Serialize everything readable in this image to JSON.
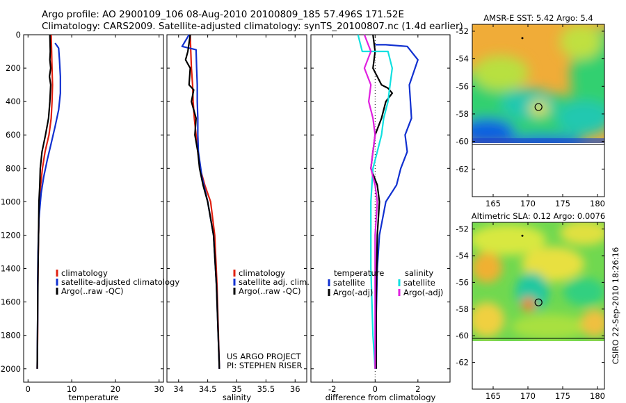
{
  "header": {
    "line1": "Argo profile: AO 2900109_106 08-Aug-2010 20100809_185 57.496S 171.52E",
    "line2": "Climatology: CARS2009. Satellite-adjusted climatology: synTS_20100807.nc (1.4d earlier)"
  },
  "colors": {
    "red": "#e02010",
    "blue": "#1030d0",
    "black": "#000000",
    "cyan": "#10e0e0",
    "magenta": "#e020e0"
  },
  "credit": "CSIRO 22-Sep-2010 18:26:16",
  "chart_data": [
    {
      "type": "line",
      "xlabel": "temperature",
      "xlim": [
        -1,
        31
      ],
      "ylim": [
        2080,
        0
      ],
      "xticks": [
        "0",
        "10",
        "20",
        "30"
      ],
      "yticks": [
        "0",
        "200",
        "400",
        "600",
        "800",
        "1000",
        "1200",
        "1400",
        "1600",
        "1800",
        "2000"
      ],
      "legend": [
        "climatology",
        "satellite-adjusted climatology",
        "Argo(..raw -QC)"
      ],
      "series": [
        {
          "name": "climatology",
          "color": "red",
          "x": [
            5.3,
            5.4,
            5.5,
            5.6,
            5.5,
            5.3,
            4.8,
            3.9,
            3.3,
            2.9,
            2.6,
            2.4,
            2.3,
            2.2,
            2.2,
            2.1
          ],
          "y": [
            0,
            100,
            200,
            300,
            400,
            500,
            600,
            700,
            800,
            900,
            1000,
            1200,
            1400,
            1600,
            1800,
            2000
          ]
        },
        {
          "name": "satellite-adjusted climatology",
          "color": "blue",
          "x": [
            6.2,
            7.0,
            7.2,
            7.4,
            7.4,
            7.0,
            6.2,
            5.3,
            4.4,
            3.6,
            3.0,
            2.5,
            2.3,
            2.2,
            2.2,
            2.1
          ],
          "y": [
            50,
            80,
            150,
            250,
            350,
            450,
            550,
            650,
            750,
            850,
            950,
            1100,
            1300,
            1500,
            1700,
            2000
          ]
        },
        {
          "name": "Argo(..raw -QC)",
          "color": "black",
          "x": [
            5.0,
            5.1,
            5.0,
            5.2,
            4.9,
            5.2,
            5.0,
            4.7,
            4.0,
            3.2,
            2.8,
            2.7,
            2.5,
            2.4,
            2.3,
            2.2,
            2.1
          ],
          "y": [
            0,
            100,
            150,
            200,
            250,
            300,
            400,
            500,
            600,
            700,
            800,
            900,
            1000,
            1200,
            1400,
            1700,
            2000
          ]
        }
      ]
    },
    {
      "type": "line",
      "xlabel": "salinity",
      "xlim": [
        33.8,
        36.2
      ],
      "ylim": [
        2080,
        0
      ],
      "xticks": [
        "34",
        "34.5",
        "35",
        "35.5",
        "36"
      ],
      "legend": [
        "climatology",
        "satellite adj. clim.",
        "Argo(..raw -QC)"
      ],
      "annotation": [
        "US ARGO PROJECT",
        "PI: STEPHEN RISER"
      ],
      "series": [
        {
          "name": "climatology",
          "color": "red",
          "x": [
            34.2,
            34.21,
            34.22,
            34.24,
            34.25,
            34.27,
            34.3,
            34.33,
            34.37,
            34.45,
            34.55,
            34.62,
            34.66,
            34.7
          ],
          "y": [
            0,
            100,
            200,
            300,
            400,
            500,
            600,
            700,
            800,
            900,
            1000,
            1200,
            1500,
            2000
          ]
        },
        {
          "name": "satellite adj. clim.",
          "color": "blue",
          "x": [
            34.18,
            34.06,
            34.3,
            34.31,
            34.32,
            34.32,
            34.33,
            34.33,
            34.34,
            34.4,
            34.5,
            34.6,
            34.65,
            34.7
          ],
          "y": [
            0,
            70,
            90,
            200,
            300,
            400,
            500,
            600,
            700,
            850,
            1000,
            1200,
            1500,
            2000
          ]
        },
        {
          "name": "Argo(..raw -QC)",
          "color": "black",
          "x": [
            34.2,
            34.16,
            34.12,
            34.2,
            34.18,
            34.26,
            34.22,
            34.3,
            34.28,
            34.33,
            34.36,
            34.42,
            34.5,
            34.6,
            34.65,
            34.7
          ],
          "y": [
            0,
            100,
            150,
            200,
            300,
            330,
            400,
            500,
            600,
            700,
            800,
            900,
            1000,
            1200,
            1500,
            2000
          ]
        }
      ]
    },
    {
      "type": "line",
      "xlabel": "difference from climatology",
      "xlim": [
        -3,
        3.5
      ],
      "ylim": [
        2080,
        0
      ],
      "xticks": [
        "-2",
        "0",
        "2"
      ],
      "legend_title": [
        "temperature",
        "salinity"
      ],
      "legend": [
        "satellite",
        "Argo(-adj)",
        "satellite",
        "Argo(-adj)"
      ],
      "series": [
        {
          "name": "satellite",
          "group": "temperature",
          "color": "blue",
          "x": [
            0,
            0.5,
            1.5,
            2.0,
            1.6,
            1.7,
            1.4,
            1.5,
            1.2,
            1.0,
            0.5,
            0.2,
            0.1,
            0.05,
            0.05
          ],
          "y": [
            60,
            60,
            70,
            150,
            300,
            500,
            600,
            700,
            800,
            900,
            1000,
            1200,
            1400,
            1700,
            2000
          ]
        },
        {
          "name": "Argo(-adj)",
          "group": "temperature",
          "color": "black",
          "x": [
            -0.1,
            0,
            -0.1,
            0.3,
            0.6,
            0.8,
            0.5,
            0.3,
            0,
            -0.1,
            -0.2,
            0.1,
            0.2,
            0.1,
            0.05,
            0.05
          ],
          "y": [
            0,
            100,
            200,
            300,
            320,
            350,
            400,
            500,
            600,
            700,
            800,
            900,
            1000,
            1200,
            1600,
            2000
          ]
        },
        {
          "name": "satellite",
          "group": "salinity",
          "color": "cyan",
          "x": [
            -0.8,
            -0.6,
            0.6,
            0.8,
            0.7,
            0.6,
            0.4,
            0.3,
            0.1,
            -0.1,
            -0.2,
            -0.2,
            -0.1,
            0
          ],
          "y": [
            0,
            100,
            100,
            200,
            300,
            400,
            500,
            600,
            700,
            800,
            1000,
            1400,
            1800,
            2000
          ]
        },
        {
          "name": "Argo(-adj)",
          "group": "salinity",
          "color": "magenta",
          "x": [
            -0.5,
            -0.2,
            -0.5,
            -0.2,
            -0.3,
            -0.1,
            0,
            -0.1,
            -0.2,
            0,
            0.1,
            0,
            0
          ],
          "y": [
            0,
            100,
            200,
            300,
            400,
            500,
            600,
            700,
            800,
            900,
            1000,
            1200,
            2000
          ]
        }
      ]
    },
    {
      "type": "heatmap",
      "title": "AMSR-E SST: 5.42 Argo: 5.4",
      "xlim": [
        162,
        181
      ],
      "ylim": [
        -64,
        -51.5
      ],
      "xticks": [
        "165",
        "170",
        "175",
        "180"
      ],
      "yticks": [
        "-52",
        "-54",
        "-56",
        "-58",
        "-60",
        "-62"
      ],
      "data_extent": {
        "lon": [
          162,
          181
        ],
        "lat": [
          -60.2,
          -51.5
        ]
      },
      "argo_position": {
        "lon": 171.52,
        "lat": -57.5
      },
      "marker_position": {
        "lon": 169.2,
        "lat": -52.5
      }
    },
    {
      "type": "heatmap",
      "title": "Altimetric SLA: 0.12 Argo: 0.0076",
      "xlim": [
        162,
        181
      ],
      "ylim": [
        -64,
        -51.5
      ],
      "xticks": [
        "165",
        "170",
        "175",
        "180"
      ],
      "yticks": [
        "-52",
        "-54",
        "-56",
        "-58",
        "-60",
        "-62"
      ],
      "data_extent": {
        "lon": [
          162,
          181
        ],
        "lat": [
          -60.2,
          -51.5
        ]
      },
      "argo_position": {
        "lon": 171.52,
        "lat": -57.5
      },
      "marker_position": {
        "lon": 169.2,
        "lat": -52.5
      }
    }
  ]
}
